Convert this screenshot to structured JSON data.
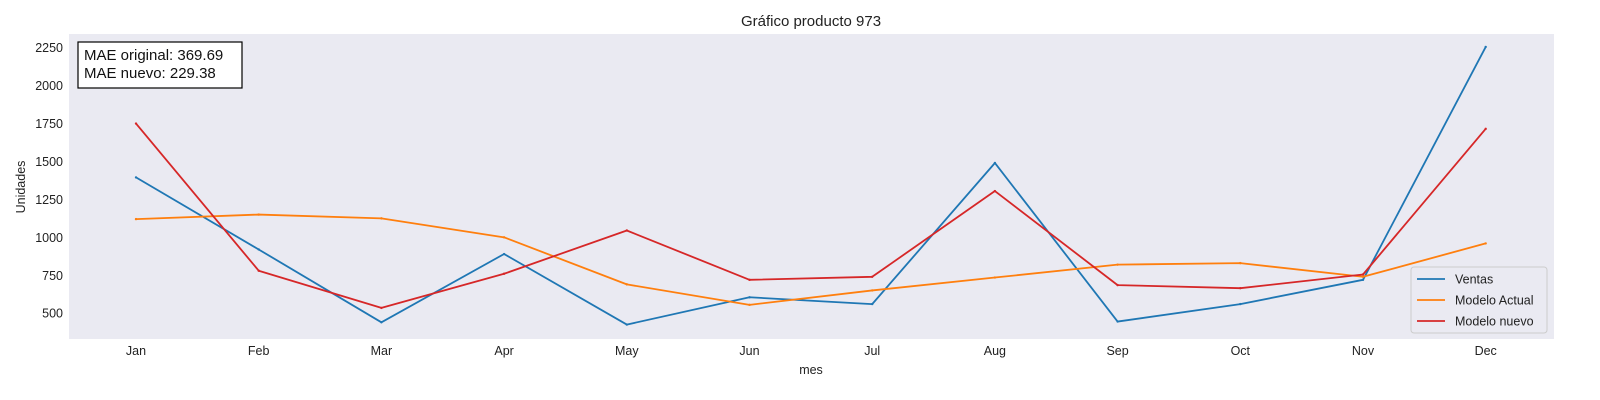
{
  "chart_data": {
    "type": "line",
    "title": "Gráfico producto 973",
    "xlabel": "mes",
    "ylabel": "Unidades",
    "categories": [
      "Jan",
      "Feb",
      "Mar",
      "Apr",
      "May",
      "Jun",
      "Jul",
      "Aug",
      "Sep",
      "Oct",
      "Nov",
      "Dec"
    ],
    "ylim": [
      330,
      2340
    ],
    "yticks": [
      500,
      750,
      1000,
      1250,
      1500,
      1750,
      2000,
      2250
    ],
    "grid": false,
    "background": "#eaeaf2",
    "legend_position": "lower-right",
    "series": [
      {
        "name": "Ventas",
        "color": "#1f77b4",
        "values": [
          1395,
          920,
          440,
          890,
          425,
          605,
          560,
          1490,
          445,
          560,
          720,
          2255
        ]
      },
      {
        "name": "Modelo Actual",
        "color": "#ff7f0e",
        "values": [
          1120,
          1150,
          1125,
          1000,
          690,
          555,
          650,
          735,
          820,
          830,
          740,
          960
        ]
      },
      {
        "name": "Modelo nuevo",
        "color": "#d62728",
        "values": [
          1750,
          780,
          535,
          760,
          1045,
          720,
          740,
          1305,
          685,
          665,
          755,
          1715
        ]
      }
    ],
    "annotations": [
      "MAE original: 369.69",
      "MAE nuevo: 229.38"
    ]
  }
}
